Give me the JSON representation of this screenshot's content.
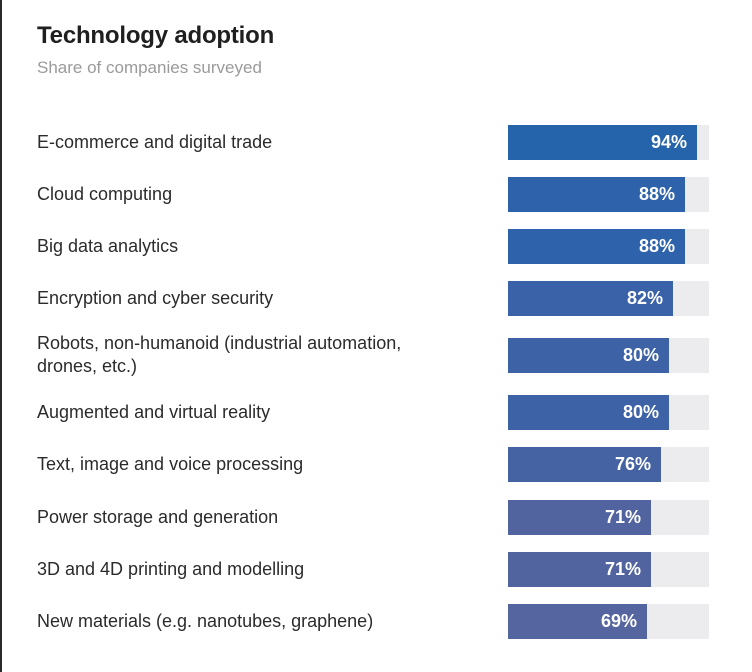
{
  "title": "Technology adoption",
  "subtitle": "Share of companies surveyed",
  "chart_data": {
    "type": "bar",
    "orientation": "horizontal",
    "title": "Technology adoption",
    "subtitle": "Share of companies surveyed",
    "xlim": [
      0,
      100
    ],
    "categories": [
      "E-commerce and digital trade",
      "Cloud computing",
      "Big data analytics",
      "Encryption and cyber security",
      "Robots, non-humanoid (industrial automation, drones, etc.)",
      "Augmented and virtual reality",
      "Text, image and voice processing",
      "Power storage and generation",
      "3D and 4D printing and modelling",
      "New materials (e.g. nanotubes, graphene)"
    ],
    "values": [
      94,
      88,
      88,
      82,
      80,
      80,
      76,
      71,
      71,
      69
    ],
    "value_labels": [
      "94%",
      "88%",
      "88%",
      "82%",
      "80%",
      "80%",
      "76%",
      "71%",
      "71%",
      "69%"
    ],
    "colors": [
      "#2563ab",
      "#2e62aa",
      "#2e62aa",
      "#3a62a8",
      "#3d62a6",
      "#3d62a6",
      "#4563a3",
      "#5164a0",
      "#5164a0",
      "#55659f"
    ],
    "track_color": "#ececef",
    "grid": false,
    "legend": "none"
  }
}
